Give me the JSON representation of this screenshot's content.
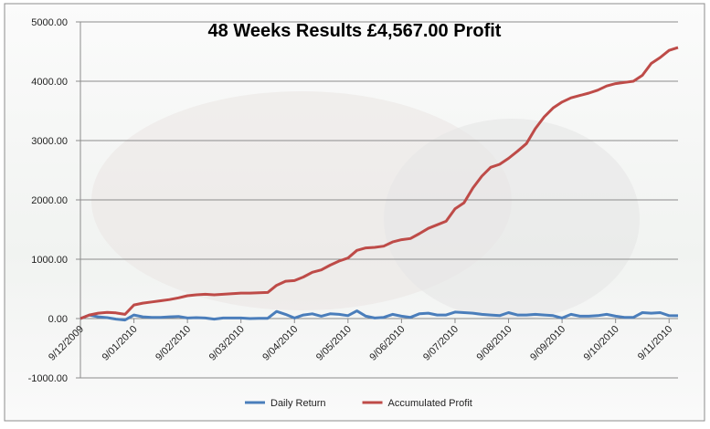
{
  "chart_data": {
    "type": "line",
    "title": "48 Weeks Results £4,567.00 Profit",
    "categories": [
      "9/12/2009",
      null,
      null,
      null,
      null,
      null,
      "9/01/2010",
      null,
      null,
      null,
      null,
      null,
      "9/02/2010",
      null,
      null,
      null,
      null,
      null,
      "9/03/2010",
      null,
      null,
      null,
      null,
      null,
      "9/04/2010",
      null,
      null,
      null,
      null,
      null,
      "9/05/2010",
      null,
      null,
      null,
      null,
      null,
      "9/06/2010",
      null,
      null,
      null,
      null,
      null,
      "9/07/2010",
      null,
      null,
      null,
      null,
      null,
      "9/08/2010",
      null,
      null,
      null,
      null,
      null,
      "9/09/2010",
      null,
      null,
      null,
      null,
      null,
      "9/10/2010",
      null,
      null,
      null,
      null,
      null,
      "9/11/2010",
      null
    ],
    "series": [
      {
        "name": "Daily Return",
        "color": "#4a7ebb",
        "values": [
          0,
          60,
          30,
          15,
          -10,
          -25,
          60,
          30,
          20,
          20,
          30,
          35,
          10,
          15,
          10,
          -10,
          10,
          10,
          10,
          0,
          5,
          5,
          120,
          70,
          10,
          60,
          80,
          40,
          80,
          70,
          50,
          130,
          40,
          10,
          20,
          70,
          40,
          20,
          80,
          90,
          60,
          60,
          110,
          100,
          90,
          70,
          60,
          50,
          100,
          60,
          60,
          70,
          60,
          50,
          10,
          70,
          40,
          40,
          50,
          70,
          40,
          20,
          20,
          100,
          90,
          100,
          50,
          47
        ]
      },
      {
        "name": "Accumulated Profit",
        "color": "#be4b48",
        "values": [
          0,
          60,
          90,
          105,
          95,
          70,
          230,
          260,
          280,
          300,
          320,
          350,
          385,
          400,
          410,
          400,
          410,
          420,
          430,
          430,
          435,
          440,
          560,
          630,
          640,
          700,
          780,
          820,
          900,
          970,
          1020,
          1150,
          1190,
          1200,
          1220,
          1290,
          1330,
          1350,
          1430,
          1520,
          1580,
          1640,
          1850,
          1950,
          2200,
          2400,
          2550,
          2600,
          2700,
          2820,
          2950,
          3200,
          3400,
          3550,
          3650,
          3720,
          3760,
          3800,
          3850,
          3920,
          3960,
          3980,
          4000,
          4100,
          4300,
          4400,
          4520,
          4567
        ]
      }
    ],
    "ylim": [
      -1000,
      5000
    ],
    "yticks": [
      {
        "value": -1000,
        "label": "-1000.00"
      },
      {
        "value": 0,
        "label": "0.00"
      },
      {
        "value": 1000,
        "label": "1000.00"
      },
      {
        "value": 2000,
        "label": "2000.00"
      },
      {
        "value": 3000,
        "label": "3000.00"
      },
      {
        "value": 4000,
        "label": "4000.00"
      },
      {
        "value": 5000,
        "label": "5000.00"
      }
    ],
    "grid": true,
    "legend": "bottom"
  }
}
